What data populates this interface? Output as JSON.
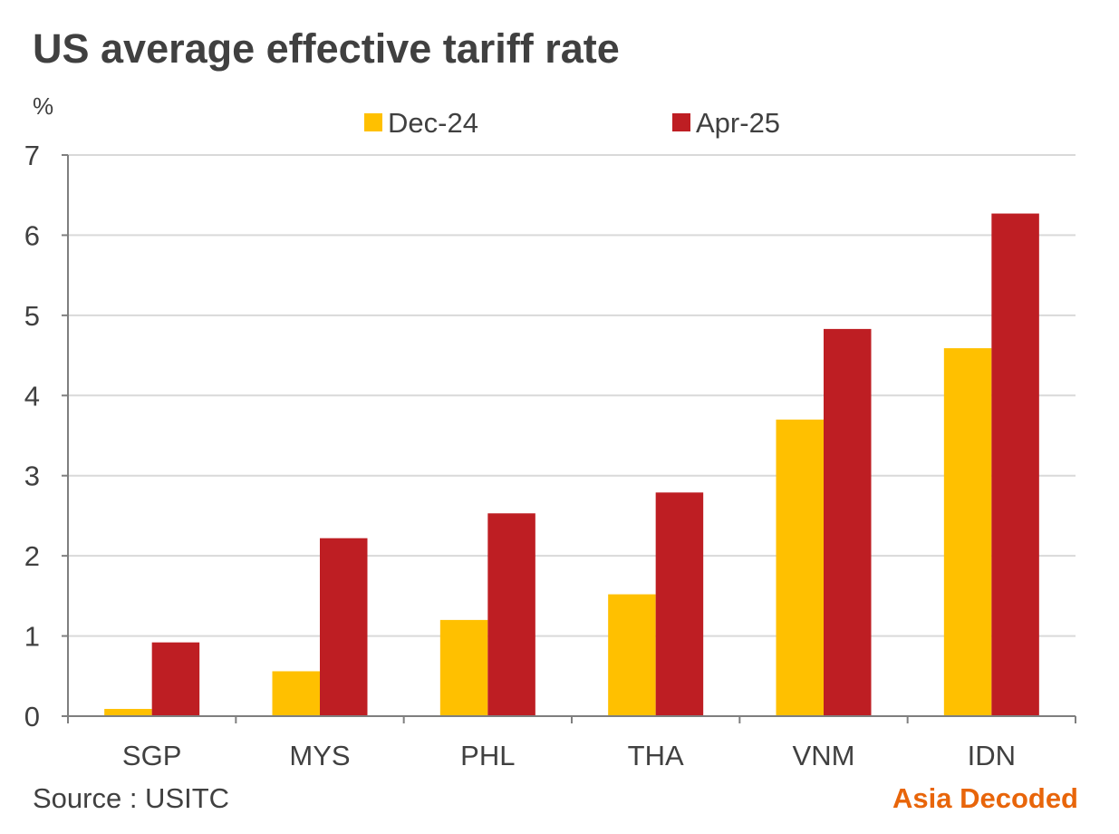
{
  "chart_data": {
    "type": "bar",
    "title": "US average effective tariff rate",
    "ylabel": "%",
    "xlabel": "",
    "ylim": [
      0,
      7
    ],
    "yticks": [
      0,
      1,
      2,
      3,
      4,
      5,
      6,
      7
    ],
    "grid": true,
    "legend_position": "top-center",
    "categories": [
      "SGP",
      "MYS",
      "PHL",
      "THA",
      "VNM",
      "IDN"
    ],
    "series": [
      {
        "name": "Dec-24",
        "color": "#FFC000",
        "values": [
          0.09,
          0.56,
          1.2,
          1.52,
          3.7,
          4.59
        ]
      },
      {
        "name": "Apr-25",
        "color": "#BE1E23",
        "values": [
          0.92,
          2.22,
          2.53,
          2.79,
          4.83,
          6.27
        ]
      }
    ]
  },
  "footer": {
    "source": "Source : USITC",
    "brand": "Asia Decoded",
    "brand_color": "#E8650A"
  }
}
